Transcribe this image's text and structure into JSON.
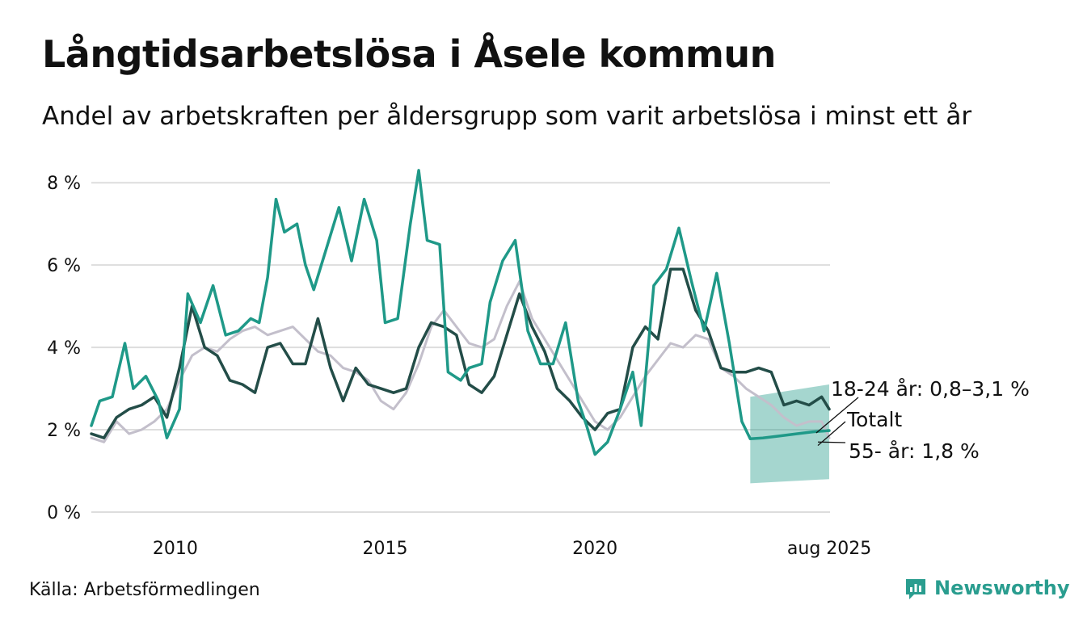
{
  "title": "Långtidsarbetslösa i Åsele kommun",
  "subtitle": "Andel av arbetskraften per åldersgrupp som varit arbetslösa i minst ett år",
  "source": "Källa: Arbetsförmedlingen",
  "brand": {
    "name": "Newsworthy",
    "icon": "newsworthy-logo-icon"
  },
  "colors": {
    "young": "#1f9988",
    "total": "#234d48",
    "old": "#c3bfcb",
    "band": "#1f9988",
    "grid": "#dddddd"
  },
  "chart_data": {
    "type": "line",
    "x_unit": "year",
    "xlim": [
      2008.0,
      2025.6
    ],
    "ylim": [
      0,
      8.2
    ],
    "y_ticks": [
      0,
      2,
      4,
      6,
      8
    ],
    "y_tick_labels": [
      "0 %",
      "2 %",
      "4 %",
      "6 %",
      "8 %"
    ],
    "x_ticks": [
      2010,
      2015,
      2020,
      2025.583
    ],
    "x_tick_labels": [
      "2010",
      "2015",
      "2020",
      "aug 2025"
    ],
    "grid": true,
    "series": [
      {
        "name": "55- år",
        "key": "old",
        "points": [
          [
            2008.0,
            1.8
          ],
          [
            2008.3,
            1.7
          ],
          [
            2008.6,
            2.2
          ],
          [
            2008.9,
            1.9
          ],
          [
            2009.2,
            2.0
          ],
          [
            2009.5,
            2.2
          ],
          [
            2009.8,
            2.5
          ],
          [
            2010.1,
            3.2
          ],
          [
            2010.4,
            3.8
          ],
          [
            2010.7,
            4.0
          ],
          [
            2011.0,
            3.9
          ],
          [
            2011.3,
            4.2
          ],
          [
            2011.6,
            4.4
          ],
          [
            2011.9,
            4.5
          ],
          [
            2012.2,
            4.3
          ],
          [
            2012.5,
            4.4
          ],
          [
            2012.8,
            4.5
          ],
          [
            2013.1,
            4.2
          ],
          [
            2013.4,
            3.9
          ],
          [
            2013.7,
            3.8
          ],
          [
            2014.0,
            3.5
          ],
          [
            2014.3,
            3.4
          ],
          [
            2014.6,
            3.2
          ],
          [
            2014.9,
            2.7
          ],
          [
            2015.2,
            2.5
          ],
          [
            2015.5,
            2.9
          ],
          [
            2015.8,
            3.6
          ],
          [
            2016.1,
            4.5
          ],
          [
            2016.4,
            4.9
          ],
          [
            2016.7,
            4.5
          ],
          [
            2017.0,
            4.1
          ],
          [
            2017.3,
            4.0
          ],
          [
            2017.6,
            4.2
          ],
          [
            2017.9,
            5.0
          ],
          [
            2018.2,
            5.6
          ],
          [
            2018.5,
            4.7
          ],
          [
            2018.8,
            4.2
          ],
          [
            2019.1,
            3.7
          ],
          [
            2019.4,
            3.2
          ],
          [
            2019.7,
            2.7
          ],
          [
            2020.0,
            2.2
          ],
          [
            2020.3,
            2.0
          ],
          [
            2020.6,
            2.3
          ],
          [
            2020.9,
            2.8
          ],
          [
            2021.2,
            3.3
          ],
          [
            2021.5,
            3.7
          ],
          [
            2021.8,
            4.1
          ],
          [
            2022.1,
            4.0
          ],
          [
            2022.4,
            4.3
          ],
          [
            2022.7,
            4.2
          ],
          [
            2023.0,
            3.5
          ],
          [
            2023.3,
            3.3
          ],
          [
            2023.6,
            3.0
          ],
          [
            2023.9,
            2.8
          ],
          [
            2024.2,
            2.6
          ],
          [
            2024.5,
            2.3
          ],
          [
            2024.8,
            2.1
          ],
          [
            2025.1,
            2.2
          ],
          [
            2025.4,
            2.2
          ],
          [
            2025.58,
            1.8
          ]
        ]
      },
      {
        "name": "Totalt",
        "key": "total",
        "points": [
          [
            2008.0,
            1.9
          ],
          [
            2008.3,
            1.8
          ],
          [
            2008.6,
            2.3
          ],
          [
            2008.9,
            2.5
          ],
          [
            2009.2,
            2.6
          ],
          [
            2009.5,
            2.8
          ],
          [
            2009.8,
            2.3
          ],
          [
            2010.1,
            3.5
          ],
          [
            2010.4,
            5.0
          ],
          [
            2010.7,
            4.0
          ],
          [
            2011.0,
            3.8
          ],
          [
            2011.3,
            3.2
          ],
          [
            2011.6,
            3.1
          ],
          [
            2011.9,
            2.9
          ],
          [
            2012.2,
            4.0
          ],
          [
            2012.5,
            4.1
          ],
          [
            2012.8,
            3.6
          ],
          [
            2013.1,
            3.6
          ],
          [
            2013.4,
            4.7
          ],
          [
            2013.7,
            3.5
          ],
          [
            2014.0,
            2.7
          ],
          [
            2014.3,
            3.5
          ],
          [
            2014.6,
            3.1
          ],
          [
            2014.9,
            3.0
          ],
          [
            2015.2,
            2.9
          ],
          [
            2015.5,
            3.0
          ],
          [
            2015.8,
            4.0
          ],
          [
            2016.1,
            4.6
          ],
          [
            2016.4,
            4.5
          ],
          [
            2016.7,
            4.3
          ],
          [
            2017.0,
            3.1
          ],
          [
            2017.3,
            2.9
          ],
          [
            2017.6,
            3.3
          ],
          [
            2017.9,
            4.3
          ],
          [
            2018.2,
            5.3
          ],
          [
            2018.5,
            4.5
          ],
          [
            2018.8,
            3.9
          ],
          [
            2019.1,
            3.0
          ],
          [
            2019.4,
            2.7
          ],
          [
            2019.7,
            2.3
          ],
          [
            2020.0,
            2.0
          ],
          [
            2020.3,
            2.4
          ],
          [
            2020.6,
            2.5
          ],
          [
            2020.9,
            4.0
          ],
          [
            2021.2,
            4.5
          ],
          [
            2021.5,
            4.2
          ],
          [
            2021.8,
            5.9
          ],
          [
            2022.1,
            5.9
          ],
          [
            2022.4,
            4.9
          ],
          [
            2022.7,
            4.4
          ],
          [
            2023.0,
            3.5
          ],
          [
            2023.3,
            3.4
          ],
          [
            2023.6,
            3.4
          ],
          [
            2023.9,
            3.5
          ],
          [
            2024.2,
            3.4
          ],
          [
            2024.5,
            2.6
          ],
          [
            2024.8,
            2.7
          ],
          [
            2025.1,
            2.6
          ],
          [
            2025.4,
            2.8
          ],
          [
            2025.58,
            2.5
          ]
        ]
      },
      {
        "name": "18-24 år",
        "key": "young",
        "points": [
          [
            2008.0,
            2.1
          ],
          [
            2008.2,
            2.7
          ],
          [
            2008.5,
            2.8
          ],
          [
            2008.8,
            4.1
          ],
          [
            2009.0,
            3.0
          ],
          [
            2009.3,
            3.3
          ],
          [
            2009.6,
            2.7
          ],
          [
            2009.8,
            1.8
          ],
          [
            2010.1,
            2.5
          ],
          [
            2010.3,
            5.3
          ],
          [
            2010.6,
            4.6
          ],
          [
            2010.9,
            5.5
          ],
          [
            2011.2,
            4.3
          ],
          [
            2011.5,
            4.4
          ],
          [
            2011.8,
            4.7
          ],
          [
            2012.0,
            4.6
          ],
          [
            2012.2,
            5.7
          ],
          [
            2012.4,
            7.6
          ],
          [
            2012.6,
            6.8
          ],
          [
            2012.9,
            7.0
          ],
          [
            2013.1,
            6.0
          ],
          [
            2013.3,
            5.4
          ],
          [
            2013.6,
            6.4
          ],
          [
            2013.9,
            7.4
          ],
          [
            2014.2,
            6.1
          ],
          [
            2014.5,
            7.6
          ],
          [
            2014.8,
            6.6
          ],
          [
            2015.0,
            4.6
          ],
          [
            2015.3,
            4.7
          ],
          [
            2015.6,
            7.0
          ],
          [
            2015.8,
            8.3
          ],
          [
            2016.0,
            6.6
          ],
          [
            2016.3,
            6.5
          ],
          [
            2016.5,
            3.4
          ],
          [
            2016.8,
            3.2
          ],
          [
            2017.0,
            3.5
          ],
          [
            2017.3,
            3.6
          ],
          [
            2017.5,
            5.1
          ],
          [
            2017.8,
            6.1
          ],
          [
            2018.1,
            6.6
          ],
          [
            2018.4,
            4.4
          ],
          [
            2018.7,
            3.6
          ],
          [
            2019.0,
            3.6
          ],
          [
            2019.3,
            4.6
          ],
          [
            2019.6,
            2.7
          ],
          [
            2019.8,
            2.1
          ],
          [
            2020.0,
            1.4
          ],
          [
            2020.3,
            1.7
          ],
          [
            2020.6,
            2.5
          ],
          [
            2020.9,
            3.4
          ],
          [
            2021.1,
            2.1
          ],
          [
            2021.4,
            5.5
          ],
          [
            2021.7,
            5.9
          ],
          [
            2022.0,
            6.9
          ],
          [
            2022.3,
            5.6
          ],
          [
            2022.6,
            4.4
          ],
          [
            2022.9,
            5.8
          ],
          [
            2023.2,
            4.1
          ],
          [
            2023.5,
            2.2
          ],
          [
            2023.7,
            1.78
          ],
          [
            2024.0,
            1.8
          ],
          [
            2024.4,
            1.85
          ],
          [
            2024.8,
            1.9
          ],
          [
            2025.2,
            1.95
          ],
          [
            2025.58,
            1.98
          ]
        ]
      }
    ],
    "uncertainty_band": {
      "series": "18-24 år",
      "x_start": 2023.7,
      "x_end": 2025.58,
      "lower_start": 0.7,
      "lower_end": 0.8,
      "upper_start": 2.8,
      "upper_end": 3.1
    },
    "labels": [
      {
        "series": "young",
        "text": "18-24 år: 0,8–3,1 %"
      },
      {
        "series": "total",
        "text": "Totalt"
      },
      {
        "series": "old",
        "text": "55- år: 1,8 %"
      }
    ]
  }
}
